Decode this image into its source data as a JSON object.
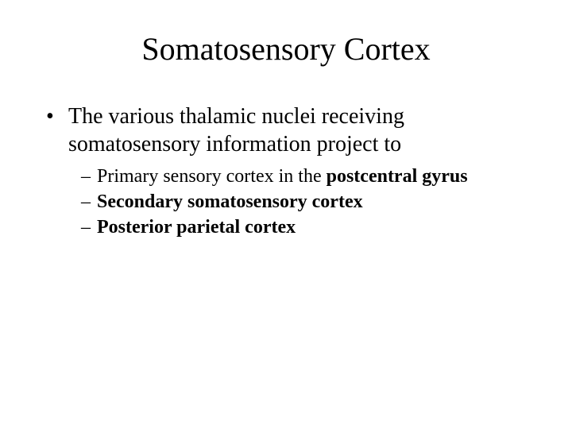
{
  "colors": {
    "background": "#ffffff",
    "text": "#000000"
  },
  "typography": {
    "font_family": "Times New Roman",
    "title_fontsize": 40,
    "l1_fontsize": 28,
    "l2_fontsize": 24
  },
  "title": "Somatosensory Cortex",
  "l1_marker": "•",
  "l2_marker": "–",
  "l1_text": "The various thalamic nuclei receiving somatosensory information project to",
  "sub1_plain": "Primary sensory cortex in the ",
  "sub1_bold": "postcentral gyrus",
  "sub2_bold": "Secondary somatosensory cortex",
  "sub3_bold": "Posterior parietal cortex"
}
